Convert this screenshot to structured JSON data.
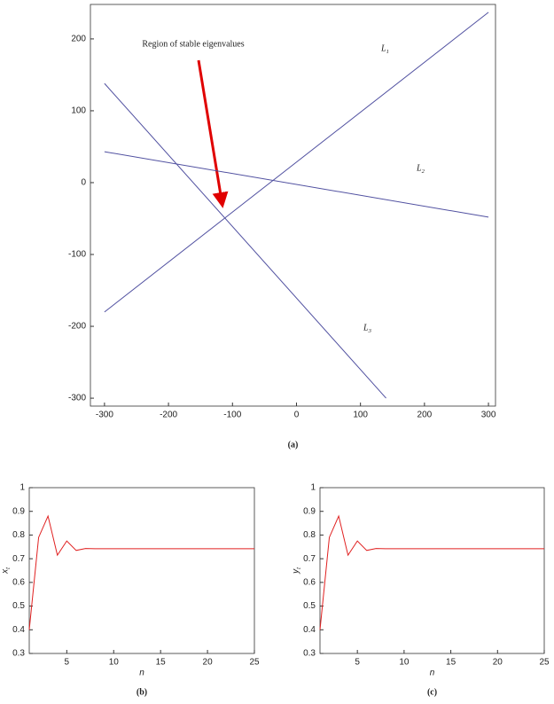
{
  "chart_data": [
    {
      "type": "line",
      "label": "(a)",
      "annotations": [
        "Region of stable eigenvalues"
      ],
      "series": [
        {
          "name": "L1",
          "color": "#5050a0",
          "x": [
            -300,
            300
          ],
          "values": [
            -180,
            237
          ]
        },
        {
          "name": "L2",
          "color": "#5050a0",
          "x": [
            -300,
            300
          ],
          "values": [
            43,
            -48
          ]
        },
        {
          "name": "L3",
          "color": "#5050a0",
          "x": [
            -300,
            140
          ],
          "values": [
            138,
            -300
          ]
        }
      ],
      "xlim": [
        -322,
        311
      ],
      "ylim": [
        -311,
        248
      ],
      "xticks": [
        -300,
        -200,
        -100,
        0,
        100,
        200,
        300
      ],
      "yticks": [
        -300,
        -200,
        -100,
        0,
        100,
        200
      ]
    },
    {
      "type": "line",
      "label": "(b)",
      "xlabel": "n",
      "ylabel": "xt",
      "color": "#e02020",
      "x": [
        1,
        2,
        3,
        4,
        5,
        6,
        7,
        8,
        9,
        10,
        11,
        12,
        13,
        14,
        15,
        16,
        17,
        18,
        19,
        20,
        21,
        22,
        23,
        24,
        25
      ],
      "values": [
        0.4,
        0.79,
        0.88,
        0.715,
        0.775,
        0.735,
        0.743,
        0.742,
        0.742,
        0.742,
        0.742,
        0.742,
        0.742,
        0.742,
        0.742,
        0.742,
        0.742,
        0.742,
        0.742,
        0.742,
        0.742,
        0.742,
        0.742,
        0.742,
        0.742
      ],
      "xlim": [
        1,
        25
      ],
      "ylim": [
        0.3,
        1
      ],
      "xticks": [
        5,
        10,
        15,
        20,
        25
      ],
      "yticks": [
        0.3,
        0.4,
        0.5,
        0.6,
        0.7,
        0.8,
        0.9,
        1
      ]
    },
    {
      "type": "line",
      "label": "(c)",
      "xlabel": "n",
      "ylabel": "yt",
      "color": "#e02020",
      "x": [
        1,
        2,
        3,
        4,
        5,
        6,
        7,
        8,
        9,
        10,
        11,
        12,
        13,
        14,
        15,
        16,
        17,
        18,
        19,
        20,
        21,
        22,
        23,
        24,
        25
      ],
      "values": [
        0.4,
        0.79,
        0.88,
        0.715,
        0.775,
        0.735,
        0.743,
        0.742,
        0.742,
        0.742,
        0.742,
        0.742,
        0.742,
        0.742,
        0.742,
        0.742,
        0.742,
        0.742,
        0.742,
        0.742,
        0.742,
        0.742,
        0.742,
        0.742,
        0.742
      ],
      "xlim": [
        1,
        25
      ],
      "ylim": [
        0.3,
        1
      ],
      "xticks": [
        5,
        10,
        15,
        20,
        25
      ],
      "yticks": [
        0.3,
        0.4,
        0.5,
        0.6,
        0.7,
        0.8,
        0.9,
        1
      ]
    }
  ]
}
